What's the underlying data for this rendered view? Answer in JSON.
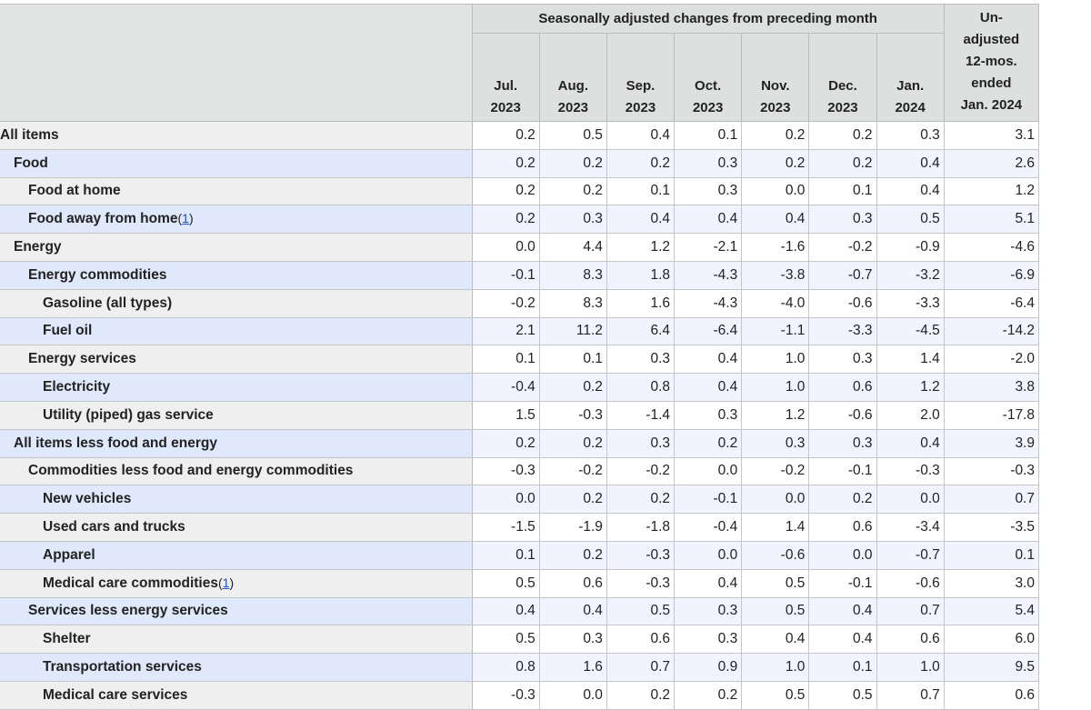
{
  "header": {
    "group_title": "Seasonally adjusted changes from preceding month",
    "months": [
      {
        "month": "Jul.",
        "year": "2023"
      },
      {
        "month": "Aug.",
        "year": "2023"
      },
      {
        "month": "Sep.",
        "year": "2023"
      },
      {
        "month": "Oct.",
        "year": "2023"
      },
      {
        "month": "Nov.",
        "year": "2023"
      },
      {
        "month": "Dec.",
        "year": "2023"
      },
      {
        "month": "Jan.",
        "year": "2024"
      }
    ],
    "unadjusted_lines": [
      "Un-",
      "adjusted",
      "12-mos.",
      "ended",
      "Jan. 2024"
    ]
  },
  "rows": [
    {
      "label": "All items",
      "level": 0,
      "values": [
        "0.2",
        "0.5",
        "0.4",
        "0.1",
        "0.2",
        "0.2",
        "0.3",
        "3.1"
      ]
    },
    {
      "label": "Food",
      "level": 1,
      "values": [
        "0.2",
        "0.2",
        "0.2",
        "0.3",
        "0.2",
        "0.2",
        "0.4",
        "2.6"
      ]
    },
    {
      "label": "Food at home",
      "level": 2,
      "values": [
        "0.2",
        "0.2",
        "0.1",
        "0.3",
        "0.0",
        "0.1",
        "0.4",
        "1.2"
      ]
    },
    {
      "label": "Food away from home",
      "level": 2,
      "footnote": "1",
      "values": [
        "0.2",
        "0.3",
        "0.4",
        "0.4",
        "0.4",
        "0.3",
        "0.5",
        "5.1"
      ]
    },
    {
      "label": "Energy",
      "level": 1,
      "values": [
        "0.0",
        "4.4",
        "1.2",
        "-2.1",
        "-1.6",
        "-0.2",
        "-0.9",
        "-4.6"
      ]
    },
    {
      "label": "Energy commodities",
      "level": 2,
      "values": [
        "-0.1",
        "8.3",
        "1.8",
        "-4.3",
        "-3.8",
        "-0.7",
        "-3.2",
        "-6.9"
      ]
    },
    {
      "label": "Gasoline (all types)",
      "level": 3,
      "values": [
        "-0.2",
        "8.3",
        "1.6",
        "-4.3",
        "-4.0",
        "-0.6",
        "-3.3",
        "-6.4"
      ]
    },
    {
      "label": "Fuel oil",
      "level": 3,
      "values": [
        "2.1",
        "11.2",
        "6.4",
        "-6.4",
        "-1.1",
        "-3.3",
        "-4.5",
        "-14.2"
      ]
    },
    {
      "label": "Energy services",
      "level": 2,
      "values": [
        "0.1",
        "0.1",
        "0.3",
        "0.4",
        "1.0",
        "0.3",
        "1.4",
        "-2.0"
      ]
    },
    {
      "label": "Electricity",
      "level": 3,
      "values": [
        "-0.4",
        "0.2",
        "0.8",
        "0.4",
        "1.0",
        "0.6",
        "1.2",
        "3.8"
      ]
    },
    {
      "label": "Utility (piped) gas service",
      "level": 3,
      "values": [
        "1.5",
        "-0.3",
        "-1.4",
        "0.3",
        "1.2",
        "-0.6",
        "2.0",
        "-17.8"
      ]
    },
    {
      "label": "All items less food and energy",
      "level": 1,
      "values": [
        "0.2",
        "0.2",
        "0.3",
        "0.2",
        "0.3",
        "0.3",
        "0.4",
        "3.9"
      ]
    },
    {
      "label": "Commodities less food and energy commodities",
      "level": 2,
      "values": [
        "-0.3",
        "-0.2",
        "-0.2",
        "0.0",
        "-0.2",
        "-0.1",
        "-0.3",
        "-0.3"
      ]
    },
    {
      "label": "New vehicles",
      "level": 3,
      "values": [
        "0.0",
        "0.2",
        "0.2",
        "-0.1",
        "0.0",
        "0.2",
        "0.0",
        "0.7"
      ]
    },
    {
      "label": "Used cars and trucks",
      "level": 3,
      "values": [
        "-1.5",
        "-1.9",
        "-1.8",
        "-0.4",
        "1.4",
        "0.6",
        "-3.4",
        "-3.5"
      ]
    },
    {
      "label": "Apparel",
      "level": 3,
      "values": [
        "0.1",
        "0.2",
        "-0.3",
        "0.0",
        "-0.6",
        "0.0",
        "-0.7",
        "0.1"
      ]
    },
    {
      "label": "Medical care commodities",
      "level": 3,
      "footnote": "1",
      "values": [
        "0.5",
        "0.6",
        "-0.3",
        "0.4",
        "0.5",
        "-0.1",
        "-0.6",
        "3.0"
      ]
    },
    {
      "label": "Services less energy services",
      "level": 2,
      "values": [
        "0.4",
        "0.4",
        "0.5",
        "0.3",
        "0.5",
        "0.4",
        "0.7",
        "5.4"
      ]
    },
    {
      "label": "Shelter",
      "level": 3,
      "values": [
        "0.5",
        "0.3",
        "0.6",
        "0.3",
        "0.4",
        "0.4",
        "0.6",
        "6.0"
      ]
    },
    {
      "label": "Transportation services",
      "level": 3,
      "values": [
        "0.8",
        "1.6",
        "0.7",
        "0.9",
        "1.0",
        "0.1",
        "1.0",
        "9.5"
      ]
    },
    {
      "label": "Medical care services",
      "level": 3,
      "values": [
        "-0.3",
        "0.0",
        "0.2",
        "0.2",
        "0.5",
        "0.5",
        "0.7",
        "0.6"
      ]
    }
  ]
}
